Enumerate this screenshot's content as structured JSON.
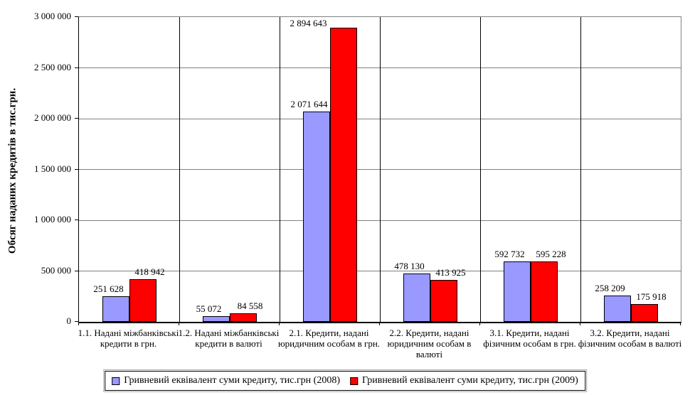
{
  "chart_data": {
    "type": "bar",
    "title": "",
    "xlabel": "",
    "ylabel": "Обсяг наданих кредитів в тис.грн.",
    "ylim": [
      0,
      3000000
    ],
    "ytick_step": 500000,
    "grid": true,
    "legend_position": "bottom",
    "categories": [
      "1.1. Надані міжбанківські кредити в грн.",
      "1.2. Надані міжбанківські кредити в валюті",
      "2.1. Кредити, надані юридичним особам в грн.",
      "2.2. Кредити, надані юридичним особам в валюті",
      "3.1. Кредити, надані фізичним особам в грн.",
      "3.2. Кредити, надані фізичним особам в валюті"
    ],
    "series": [
      {
        "name": "Гривневий еквівалент суми кредиту, тис.грн (2008)",
        "color": "#9999FF",
        "values": [
          251628,
          55072,
          2071644,
          478130,
          592732,
          258209
        ]
      },
      {
        "name": "Гривневий еквівалент суми кредиту, тис.грн (2009)",
        "color": "#FF0000",
        "values": [
          418942,
          84558,
          2894643,
          413925,
          595228,
          175918
        ]
      }
    ]
  }
}
